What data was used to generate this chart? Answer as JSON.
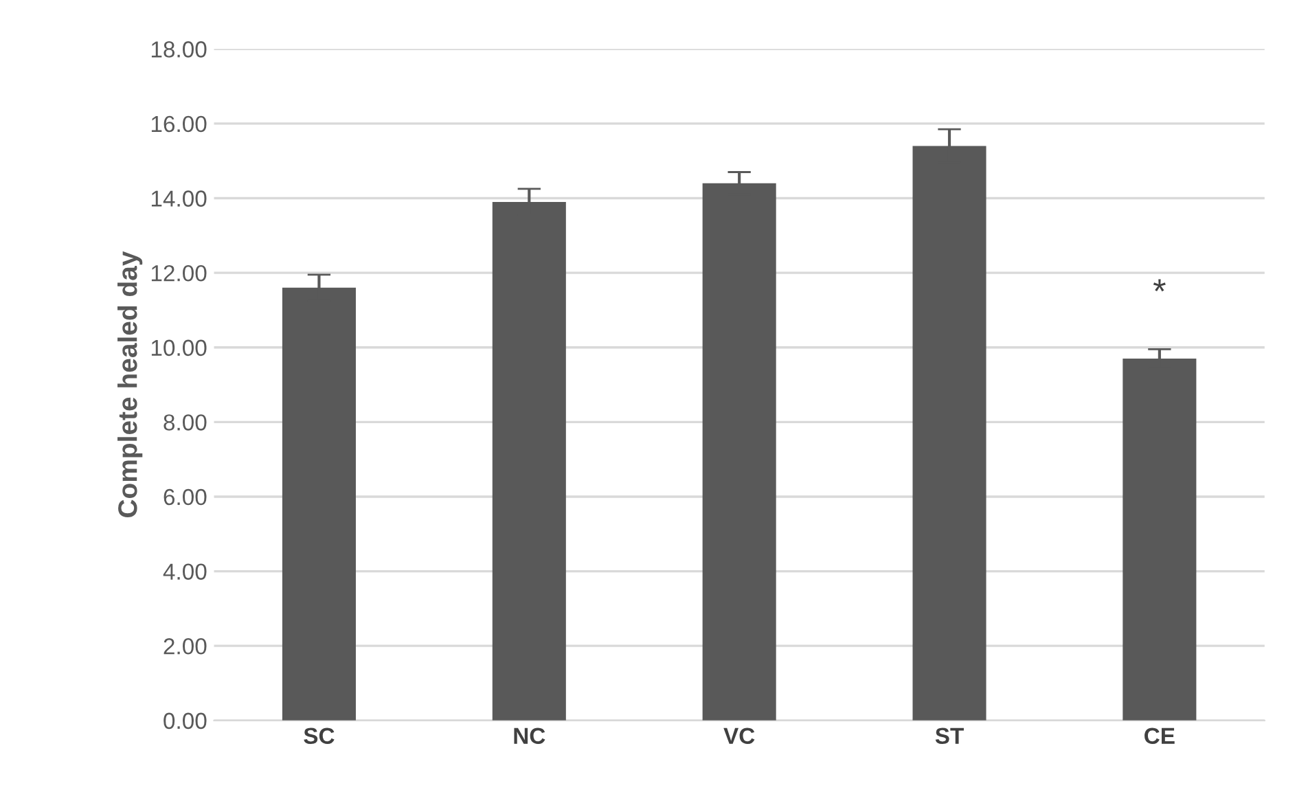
{
  "chart_data": {
    "type": "bar",
    "ylabel": "Complete healed day",
    "categories": [
      "SC",
      "NC",
      "VC",
      "ST",
      "CE"
    ],
    "values": [
      11.6,
      13.9,
      14.4,
      15.4,
      9.7
    ],
    "errors": [
      0.35,
      0.35,
      0.3,
      0.45,
      0.25
    ],
    "color": "#595959",
    "ylim": [
      0,
      18
    ],
    "yticks": [
      {
        "value": 0,
        "label": "0.00"
      },
      {
        "value": 2,
        "label": "2.00"
      },
      {
        "value": 4,
        "label": "4.00"
      },
      {
        "value": 6,
        "label": "6.00"
      },
      {
        "value": 8,
        "label": "8.00"
      },
      {
        "value": 10,
        "label": "10.00"
      },
      {
        "value": 12,
        "label": "12.00"
      },
      {
        "value": 14,
        "label": "14.00"
      },
      {
        "value": 16,
        "label": "16.00"
      },
      {
        "value": 18,
        "label": "18.00"
      }
    ],
    "grid": "y",
    "annotations": [
      "*"
    ]
  }
}
